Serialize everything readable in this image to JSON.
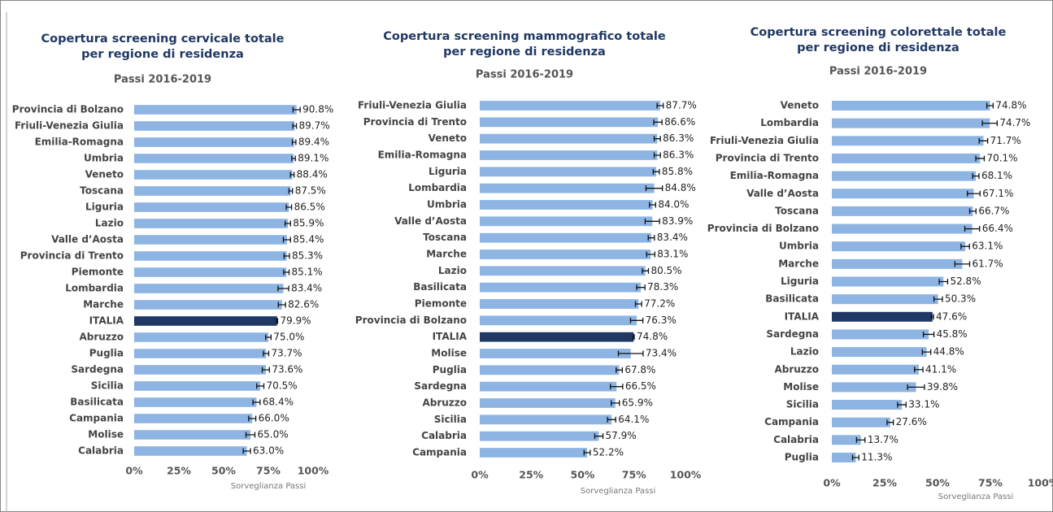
{
  "chart_data": [
    {
      "type": "bar",
      "orientation": "horizontal",
      "title": [
        "Copertura screening cervicale totale",
        "per regione di residenza"
      ],
      "subtitle": "Passi 2016-2019",
      "source": "Sorveglianza Passi",
      "categories": [
        "Provincia di Bolzano",
        "Friuli-Venezia Giulia",
        "Emilia-Romagna",
        "Umbria",
        "Veneto",
        "Toscana",
        "Liguria",
        "Lazio",
        "Valle d’Aosta",
        "Provincia di Trento",
        "Piemonte",
        "Lombardia",
        "Marche",
        "ITALIA",
        "Abruzzo",
        "Puglia",
        "Sardegna",
        "Sicilia",
        "Basilicata",
        "Campania",
        "Molise",
        "Calabria"
      ],
      "values": [
        90.8,
        89.7,
        89.4,
        89.1,
        88.4,
        87.5,
        86.5,
        85.9,
        85.4,
        85.3,
        85.1,
        83.4,
        82.6,
        79.9,
        75.0,
        73.7,
        73.6,
        70.5,
        68.4,
        66.0,
        65.0,
        63.0
      ],
      "value_labels": [
        "90.8%",
        "89.7%",
        "89.4%",
        "89.1%",
        "88.4%",
        "87.5%",
        "86.5%",
        "85.9%",
        "85.4%",
        "85.3%",
        "85.1%",
        "83.4%",
        "82.6%",
        "79.9%",
        "75.0%",
        "73.7%",
        "73.6%",
        "70.5%",
        "68.4%",
        "66.0%",
        "65.0%",
        "63.0%"
      ],
      "errors": [
        2,
        1,
        1,
        1,
        1,
        1,
        1.5,
        1.5,
        2,
        1.5,
        1.5,
        3,
        2,
        0.3,
        1.5,
        1.5,
        2,
        2,
        2,
        2,
        2.5,
        2
      ],
      "colors": [
        "#8db4e2",
        "#8db4e2",
        "#8db4e2",
        "#8db4e2",
        "#8db4e2",
        "#8db4e2",
        "#8db4e2",
        "#8db4e2",
        "#8db4e2",
        "#8db4e2",
        "#8db4e2",
        "#8db4e2",
        "#8db4e2",
        "#1f3864",
        "#8db4e2",
        "#8db4e2",
        "#8db4e2",
        "#8db4e2",
        "#8db4e2",
        "#8db4e2",
        "#8db4e2",
        "#8db4e2"
      ],
      "xlim": [
        0,
        100
      ],
      "xticks": [
        {
          "value": 0,
          "label": "0%"
        },
        {
          "value": 25,
          "label": "25%"
        },
        {
          "value": 50,
          "label": "50%"
        },
        {
          "value": 75,
          "label": "75%"
        },
        {
          "value": 100,
          "label": "100%"
        }
      ]
    },
    {
      "type": "bar",
      "orientation": "horizontal",
      "title": [
        "Copertura screening mammografico totale",
        "per regione di residenza"
      ],
      "subtitle": "Passi 2016-2019",
      "source": "Sorveglianza Passi",
      "categories": [
        "Friuli-Venezia Giulia",
        "Provincia di Trento",
        "Veneto",
        "Emilia-Romagna",
        "Liguria",
        "Lombardia",
        "Umbria",
        "Valle d’Aosta",
        "Toscana",
        "Marche",
        "Lazio",
        "Basilicata",
        "Piemonte",
        "Provincia di Bolzano",
        "ITALIA",
        "Molise",
        "Puglia",
        "Sardegna",
        "Abruzzo",
        "Sicilia",
        "Calabria",
        "Campania"
      ],
      "values": [
        87.7,
        86.6,
        86.3,
        86.3,
        85.8,
        84.8,
        84.0,
        83.9,
        83.4,
        83.1,
        80.5,
        78.3,
        77.2,
        76.3,
        74.8,
        73.4,
        67.8,
        66.5,
        65.9,
        64.1,
        57.9,
        52.2
      ],
      "value_labels": [
        "87.7%",
        "86.6%",
        "86.3%",
        "86.3%",
        "85.8%",
        "84.8%",
        "84.0%",
        "83.9%",
        "83.4%",
        "83.1%",
        "80.5%",
        "78.3%",
        "77.2%",
        "76.3%",
        "74.8%",
        "73.4%",
        "67.8%",
        "66.5%",
        "65.9%",
        "64.1%",
        "57.9%",
        "52.2%"
      ],
      "errors": [
        1.5,
        2,
        1.5,
        1.5,
        1.5,
        4,
        1.5,
        3.5,
        1.5,
        2,
        1.5,
        2,
        1.5,
        3,
        0.3,
        6,
        1.5,
        3,
        2,
        2,
        2,
        1.5
      ],
      "colors": [
        "#8db4e2",
        "#8db4e2",
        "#8db4e2",
        "#8db4e2",
        "#8db4e2",
        "#8db4e2",
        "#8db4e2",
        "#8db4e2",
        "#8db4e2",
        "#8db4e2",
        "#8db4e2",
        "#8db4e2",
        "#8db4e2",
        "#8db4e2",
        "#1f3864",
        "#8db4e2",
        "#8db4e2",
        "#8db4e2",
        "#8db4e2",
        "#8db4e2",
        "#8db4e2",
        "#8db4e2"
      ],
      "xlim": [
        0,
        100
      ],
      "xticks": [
        {
          "value": 0,
          "label": "0%"
        },
        {
          "value": 25,
          "label": "25%"
        },
        {
          "value": 50,
          "label": "50%"
        },
        {
          "value": 75,
          "label": "75%"
        },
        {
          "value": 100,
          "label": "100%"
        }
      ]
    },
    {
      "type": "bar",
      "orientation": "horizontal",
      "title": [
        "Copertura screening colorettale totale",
        "per regione di residenza"
      ],
      "subtitle": "Passi 2016-2019",
      "source": "Sorveglianza Passi",
      "categories": [
        "Veneto",
        "Lombardia",
        "Friuli-Venezia Giulia",
        "Provincia di Trento",
        "Emilia-Romagna",
        "Valle d’Aosta",
        "Toscana",
        "Provincia di Bolzano",
        "Umbria",
        "Marche",
        "Liguria",
        "Basilicata",
        "ITALIA",
        "Sardegna",
        "Lazio",
        "Abruzzo",
        "Molise",
        "Sicilia",
        "Campania",
        "Calabria",
        "Puglia"
      ],
      "values": [
        74.8,
        74.7,
        71.7,
        70.1,
        68.1,
        67.1,
        66.7,
        66.4,
        63.1,
        61.7,
        52.8,
        50.3,
        47.6,
        45.8,
        44.8,
        41.1,
        39.8,
        33.1,
        27.6,
        13.7,
        11.3
      ],
      "value_labels": [
        "74.8%",
        "74.7%",
        "71.7%",
        "70.1%",
        "68.1%",
        "67.1%",
        "66.7%",
        "66.4%",
        "63.1%",
        "61.7%",
        "52.8%",
        "50.3%",
        "47.6%",
        "45.8%",
        "44.8%",
        "41.1%",
        "39.8%",
        "33.1%",
        "27.6%",
        "13.7%",
        "11.3%"
      ],
      "errors": [
        1.5,
        3.5,
        2,
        2,
        1.5,
        3,
        1.5,
        3.5,
        2,
        3.5,
        2,
        2,
        0.5,
        2.5,
        2,
        2,
        4,
        2,
        1.5,
        2,
        1.5
      ],
      "colors": [
        "#8db4e2",
        "#8db4e2",
        "#8db4e2",
        "#8db4e2",
        "#8db4e2",
        "#8db4e2",
        "#8db4e2",
        "#8db4e2",
        "#8db4e2",
        "#8db4e2",
        "#8db4e2",
        "#8db4e2",
        "#1f3864",
        "#8db4e2",
        "#8db4e2",
        "#8db4e2",
        "#8db4e2",
        "#8db4e2",
        "#8db4e2",
        "#8db4e2",
        "#8db4e2"
      ],
      "xlim": [
        0,
        100
      ],
      "xticks": [
        {
          "value": 0,
          "label": "0%"
        },
        {
          "value": 25,
          "label": "25%"
        },
        {
          "value": 50,
          "label": "50%"
        },
        {
          "value": 75,
          "label": "75%"
        },
        {
          "value": 100,
          "label": "100%"
        }
      ]
    }
  ]
}
